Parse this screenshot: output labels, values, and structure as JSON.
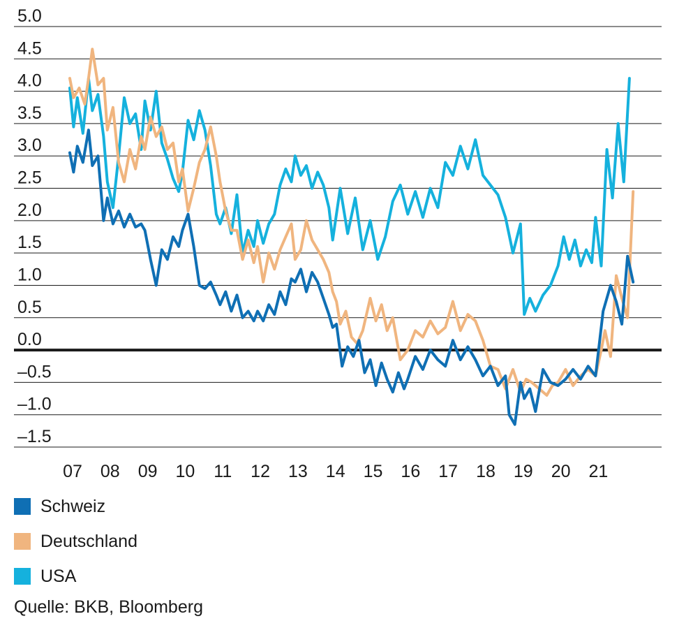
{
  "colors": {
    "schweiz": "#0f6fb4",
    "deutschland": "#f0b57f",
    "usa": "#15b1dd",
    "grid": "#1a1a1a",
    "zero_line": "#1a1a1a"
  },
  "source": "Quelle: BKB, Bloomberg",
  "chart_data": {
    "type": "line",
    "title": "",
    "xlabel": "",
    "ylabel": "",
    "ylim": [
      -1.5,
      5.0
    ],
    "xlim": [
      2007,
      2022.2
    ],
    "grid": true,
    "legend_position": "bottom-left",
    "y_ticks": [
      "5.0",
      "4.5",
      "4.0",
      "3.5",
      "3.0",
      "2.5",
      "2.0",
      "1.5",
      "1.0",
      "0.5",
      "0.0",
      "–0.5",
      "–1.0",
      "–1.5"
    ],
    "y_tick_values": [
      5.0,
      4.5,
      4.0,
      3.5,
      3.0,
      2.5,
      2.0,
      1.5,
      1.0,
      0.5,
      0.0,
      -0.5,
      -1.0,
      -1.5
    ],
    "x_ticks": [
      "07",
      "08",
      "09",
      "10",
      "11",
      "12",
      "13",
      "14",
      "15",
      "16",
      "17",
      "18",
      "19",
      "20",
      "21"
    ],
    "x_tick_values": [
      2007,
      2008,
      2009,
      2010,
      2011,
      2012,
      2013,
      2014,
      2015,
      2016,
      2017,
      2018,
      2019,
      2020,
      2021
    ],
    "series": [
      {
        "name": "Schweiz",
        "color_key": "schweiz",
        "x": [
          2007.0,
          2007.1,
          2007.2,
          2007.35,
          2007.5,
          2007.6,
          2007.75,
          2007.9,
          2008.0,
          2008.15,
          2008.3,
          2008.45,
          2008.6,
          2008.75,
          2008.9,
          2009.0,
          2009.15,
          2009.3,
          2009.45,
          2009.6,
          2009.75,
          2009.9,
          2010.0,
          2010.15,
          2010.3,
          2010.45,
          2010.6,
          2010.75,
          2010.9,
          2011.0,
          2011.15,
          2011.3,
          2011.45,
          2011.6,
          2011.75,
          2011.9,
          2012.0,
          2012.15,
          2012.3,
          2012.45,
          2012.6,
          2012.75,
          2012.9,
          2013.0,
          2013.15,
          2013.3,
          2013.45,
          2013.6,
          2013.75,
          2013.9,
          2014.0,
          2014.1,
          2014.25,
          2014.4,
          2014.55,
          2014.7,
          2014.85,
          2015.0,
          2015.15,
          2015.3,
          2015.45,
          2015.6,
          2015.75,
          2015.9,
          2016.0,
          2016.2,
          2016.4,
          2016.6,
          2016.8,
          2017.0,
          2017.2,
          2017.4,
          2017.6,
          2017.8,
          2018.0,
          2018.2,
          2018.4,
          2018.6,
          2018.7,
          2018.85,
          2019.0,
          2019.1,
          2019.25,
          2019.4,
          2019.6,
          2019.8,
          2020.0,
          2020.2,
          2020.4,
          2020.6,
          2020.8,
          2021.0,
          2021.2,
          2021.4,
          2021.55,
          2021.7,
          2021.85,
          2022.0
        ],
        "values": [
          3.05,
          2.75,
          3.15,
          2.9,
          3.4,
          2.85,
          3.0,
          2.0,
          2.35,
          1.95,
          2.15,
          1.9,
          2.1,
          1.9,
          1.95,
          1.85,
          1.4,
          1.0,
          1.55,
          1.4,
          1.75,
          1.6,
          1.85,
          2.1,
          1.6,
          1.0,
          0.95,
          1.05,
          0.85,
          0.7,
          0.9,
          0.6,
          0.85,
          0.5,
          0.6,
          0.45,
          0.6,
          0.45,
          0.7,
          0.55,
          0.9,
          0.7,
          1.1,
          1.05,
          1.25,
          0.9,
          1.2,
          1.05,
          0.8,
          0.55,
          0.35,
          0.4,
          -0.25,
          0.05,
          -0.1,
          0.15,
          -0.35,
          -0.15,
          -0.55,
          -0.2,
          -0.45,
          -0.65,
          -0.35,
          -0.6,
          -0.45,
          -0.1,
          -0.3,
          0.0,
          -0.15,
          -0.25,
          0.15,
          -0.15,
          0.05,
          -0.15,
          -0.4,
          -0.25,
          -0.55,
          -0.4,
          -1.0,
          -1.15,
          -0.5,
          -0.75,
          -0.6,
          -0.95,
          -0.3,
          -0.5,
          -0.55,
          -0.45,
          -0.3,
          -0.45,
          -0.25,
          -0.4,
          0.6,
          1.0,
          0.75,
          0.4,
          1.45,
          1.05
        ]
      },
      {
        "name": "Deutschland",
        "color_key": "deutschland",
        "x": [
          2007.0,
          2007.1,
          2007.25,
          2007.4,
          2007.5,
          2007.6,
          2007.75,
          2007.9,
          2008.0,
          2008.15,
          2008.3,
          2008.45,
          2008.6,
          2008.75,
          2008.9,
          2009.0,
          2009.15,
          2009.3,
          2009.45,
          2009.6,
          2009.75,
          2009.9,
          2010.0,
          2010.15,
          2010.3,
          2010.45,
          2010.6,
          2010.75,
          2010.9,
          2011.0,
          2011.15,
          2011.3,
          2011.45,
          2011.6,
          2011.75,
          2011.9,
          2012.0,
          2012.15,
          2012.3,
          2012.45,
          2012.6,
          2012.75,
          2012.9,
          2013.0,
          2013.15,
          2013.3,
          2013.45,
          2013.6,
          2013.75,
          2013.9,
          2014.0,
          2014.1,
          2014.2,
          2014.35,
          2014.5,
          2014.65,
          2014.8,
          2015.0,
          2015.15,
          2015.3,
          2015.45,
          2015.6,
          2015.8,
          2016.0,
          2016.2,
          2016.4,
          2016.6,
          2016.8,
          2017.0,
          2017.2,
          2017.4,
          2017.6,
          2017.8,
          2018.0,
          2018.2,
          2018.4,
          2018.6,
          2018.8,
          2019.0,
          2019.15,
          2019.3,
          2019.5,
          2019.7,
          2019.85,
          2020.0,
          2020.2,
          2020.4,
          2020.6,
          2020.8,
          2021.0,
          2021.15,
          2021.25,
          2021.4,
          2021.55,
          2021.7,
          2021.85,
          2022.0
        ],
        "values": [
          4.2,
          3.9,
          4.05,
          3.8,
          4.2,
          4.65,
          4.1,
          4.2,
          3.4,
          3.75,
          2.9,
          2.6,
          3.1,
          2.8,
          3.3,
          3.1,
          3.6,
          3.3,
          3.45,
          3.1,
          3.2,
          2.6,
          2.8,
          2.15,
          2.5,
          2.9,
          3.1,
          3.45,
          3.0,
          2.6,
          2.15,
          1.85,
          1.85,
          1.4,
          1.7,
          1.35,
          1.6,
          1.05,
          1.5,
          1.25,
          1.55,
          1.75,
          1.95,
          1.4,
          1.55,
          2.0,
          1.7,
          1.55,
          1.4,
          1.2,
          0.9,
          0.75,
          0.4,
          0.6,
          0.2,
          0.1,
          0.3,
          0.8,
          0.45,
          0.7,
          0.3,
          0.5,
          -0.15,
          0.0,
          0.3,
          0.2,
          0.45,
          0.25,
          0.35,
          0.75,
          0.3,
          0.55,
          0.45,
          0.15,
          -0.25,
          -0.3,
          -0.6,
          -0.3,
          -0.65,
          -0.45,
          -0.5,
          -0.6,
          -0.7,
          -0.55,
          -0.5,
          -0.3,
          -0.55,
          -0.4,
          -0.3,
          -0.4,
          0.0,
          0.3,
          -0.1,
          1.15,
          0.8,
          0.5,
          2.45
        ]
      },
      {
        "name": "USA",
        "color_key": "usa",
        "x": [
          2007.0,
          2007.1,
          2007.2,
          2007.35,
          2007.5,
          2007.6,
          2007.75,
          2007.9,
          2008.0,
          2008.15,
          2008.3,
          2008.45,
          2008.6,
          2008.75,
          2008.9,
          2009.0,
          2009.15,
          2009.3,
          2009.45,
          2009.6,
          2009.75,
          2009.9,
          2010.0,
          2010.15,
          2010.3,
          2010.45,
          2010.6,
          2010.75,
          2010.9,
          2011.0,
          2011.15,
          2011.3,
          2011.45,
          2011.6,
          2011.75,
          2011.9,
          2012.0,
          2012.15,
          2012.3,
          2012.45,
          2012.6,
          2012.75,
          2012.9,
          2013.0,
          2013.15,
          2013.3,
          2013.45,
          2013.6,
          2013.75,
          2013.9,
          2014.0,
          2014.2,
          2014.4,
          2014.6,
          2014.8,
          2015.0,
          2015.2,
          2015.4,
          2015.6,
          2015.8,
          2016.0,
          2016.2,
          2016.4,
          2016.6,
          2016.8,
          2017.0,
          2017.2,
          2017.4,
          2017.6,
          2017.8,
          2018.0,
          2018.2,
          2018.4,
          2018.6,
          2018.8,
          2019.0,
          2019.1,
          2019.25,
          2019.4,
          2019.6,
          2019.8,
          2020.0,
          2020.15,
          2020.3,
          2020.45,
          2020.6,
          2020.75,
          2020.9,
          2021.0,
          2021.15,
          2021.3,
          2021.45,
          2021.6,
          2021.75,
          2021.9
        ],
        "values": [
          4.05,
          3.45,
          3.9,
          3.35,
          4.2,
          3.7,
          3.95,
          3.3,
          2.6,
          2.2,
          3.0,
          3.9,
          3.5,
          3.65,
          3.1,
          3.85,
          3.4,
          4.0,
          3.2,
          2.95,
          2.65,
          2.45,
          2.75,
          3.55,
          3.25,
          3.7,
          3.4,
          2.85,
          2.1,
          1.95,
          2.2,
          1.8,
          2.4,
          1.5,
          1.85,
          1.6,
          2.0,
          1.65,
          1.95,
          2.1,
          2.55,
          2.8,
          2.6,
          3.0,
          2.7,
          2.85,
          2.5,
          2.75,
          2.55,
          2.2,
          1.7,
          2.5,
          1.8,
          2.35,
          1.55,
          2.0,
          1.4,
          1.75,
          2.3,
          2.55,
          2.1,
          2.45,
          2.05,
          2.5,
          2.2,
          2.9,
          2.7,
          3.15,
          2.8,
          3.25,
          2.7,
          2.55,
          2.4,
          2.05,
          1.5,
          1.95,
          0.55,
          0.8,
          0.6,
          0.85,
          1.0,
          1.3,
          1.75,
          1.4,
          1.7,
          1.3,
          1.55,
          1.35,
          2.05,
          1.3,
          3.1,
          2.35,
          3.5,
          2.6,
          4.2
        ]
      }
    ]
  }
}
